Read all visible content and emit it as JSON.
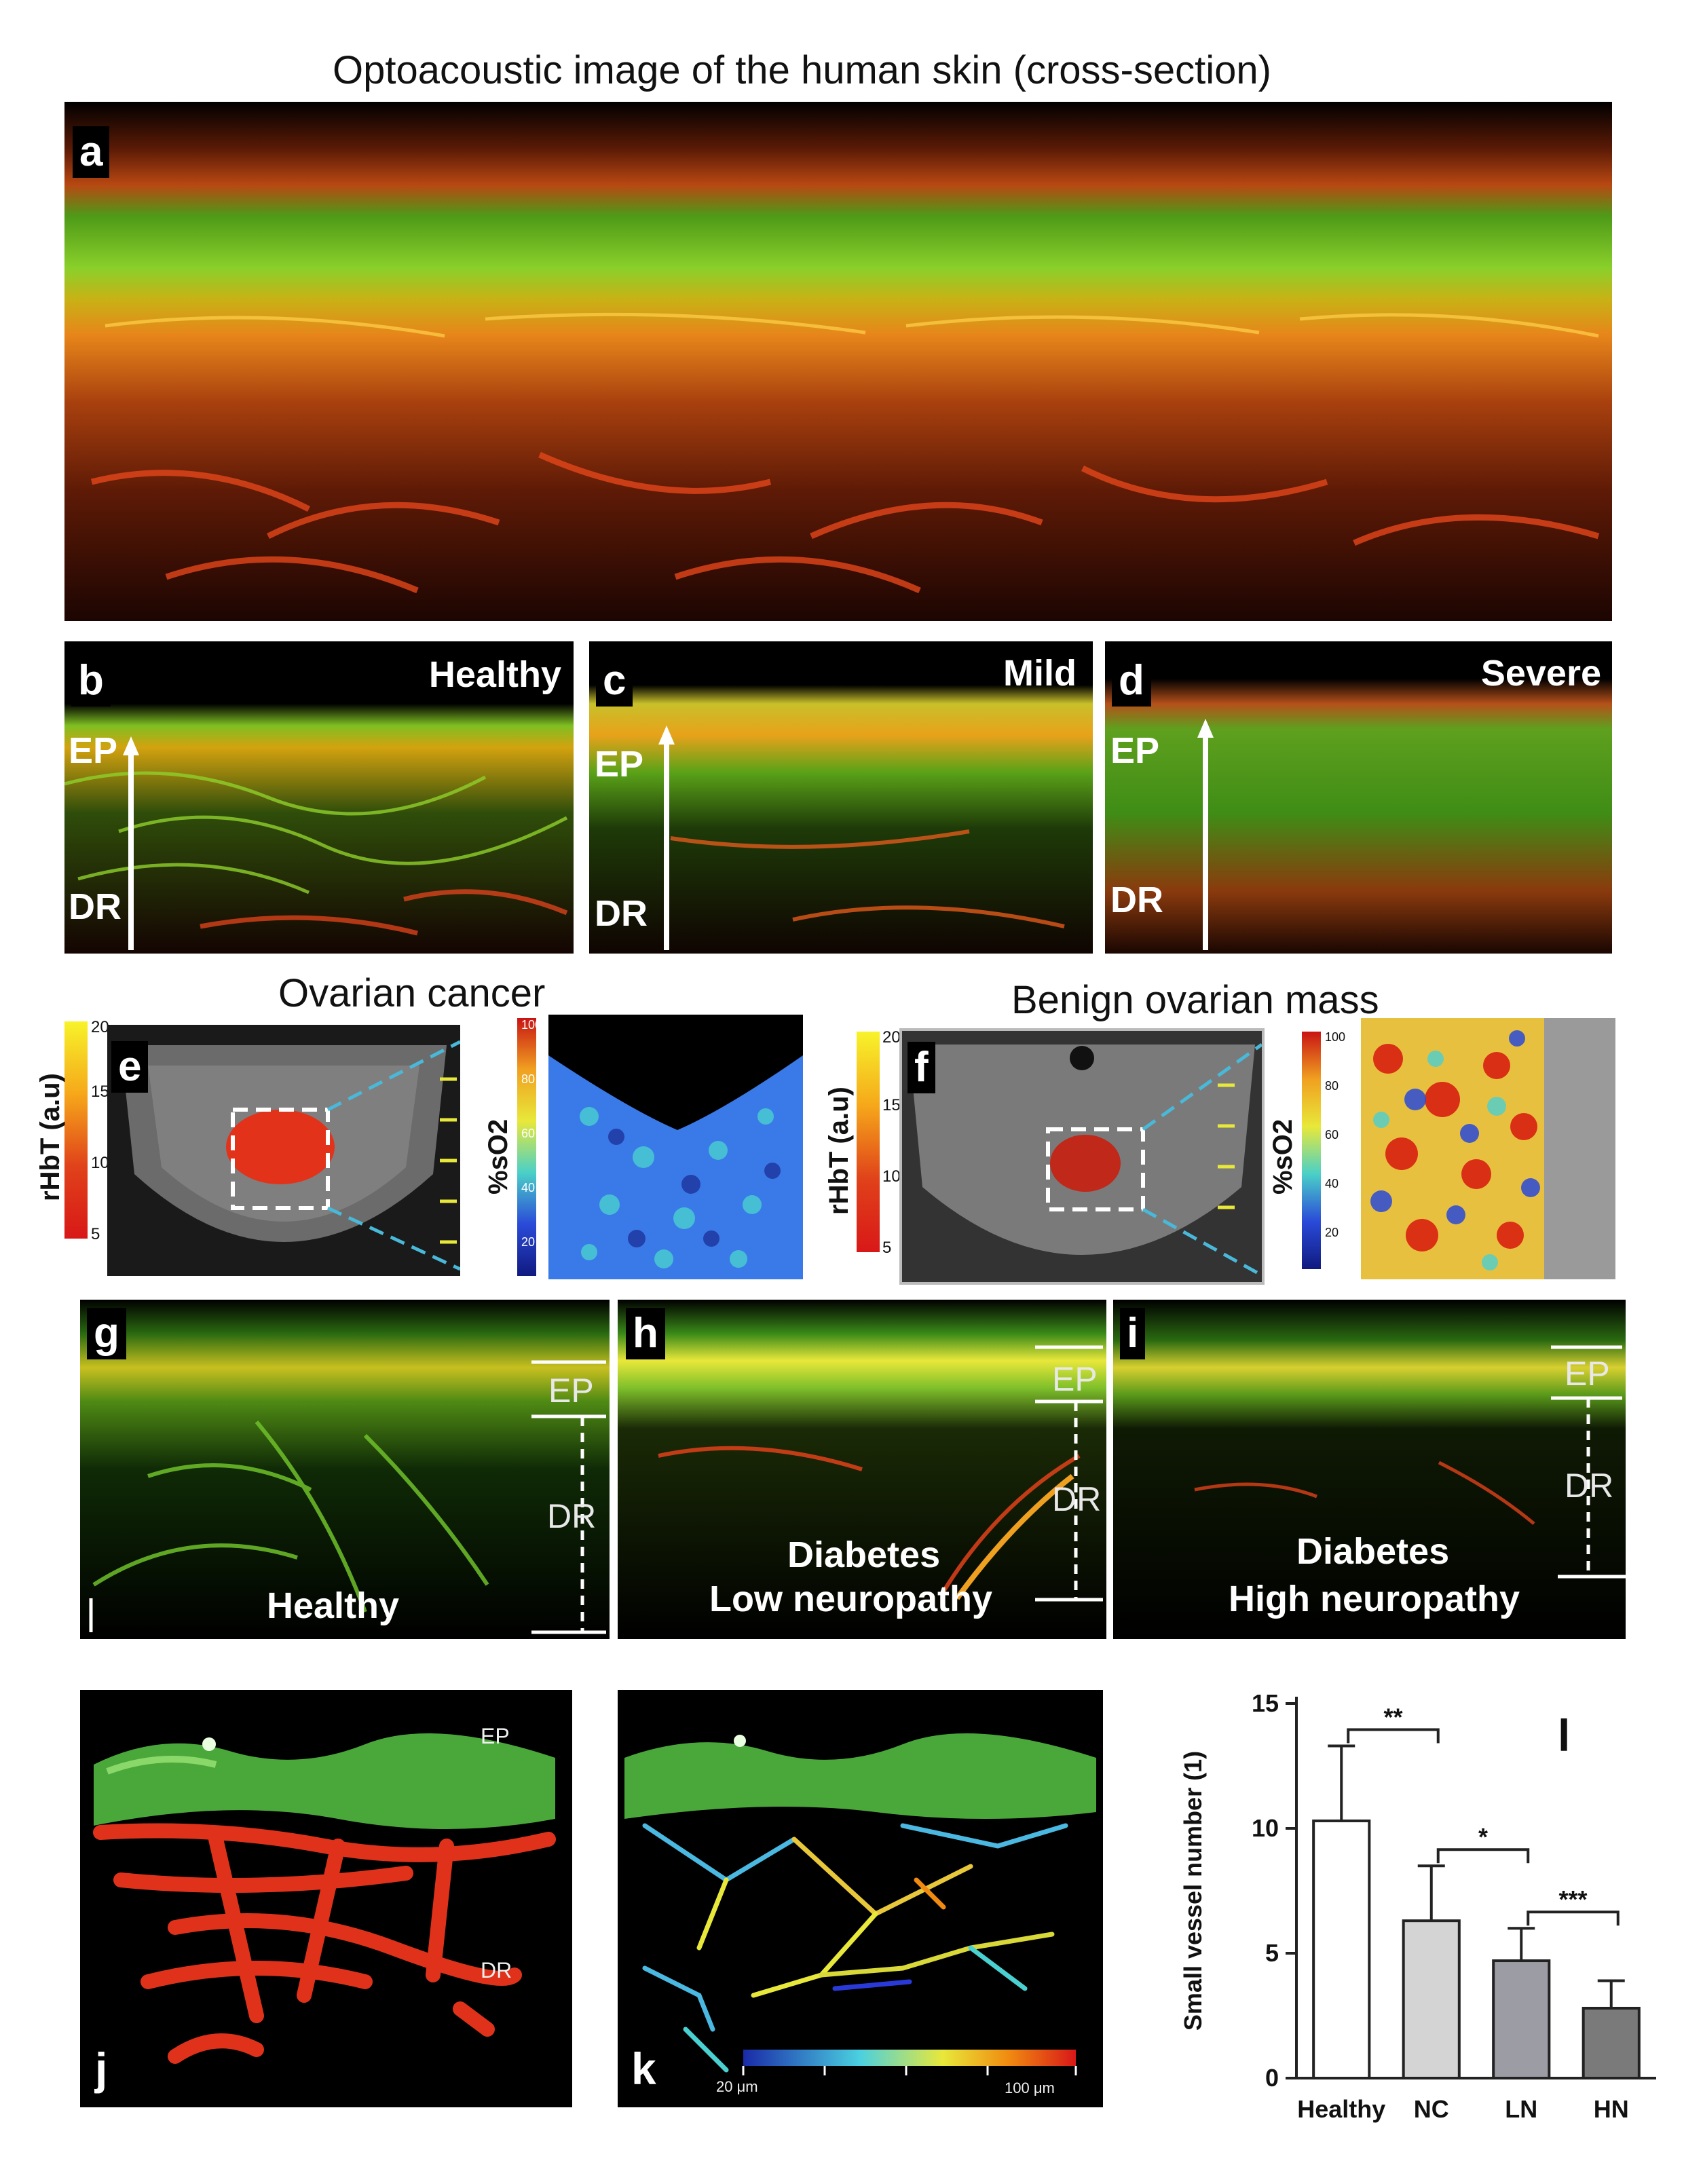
{
  "figure": {
    "title": "Optoacoustic image of the human skin (cross-section)",
    "panel_a": {
      "letter": "a"
    },
    "panel_b": {
      "letter": "b",
      "condition": "Healthy",
      "ep": "EP",
      "dr": "DR"
    },
    "panel_c": {
      "letter": "c",
      "condition": "Mild",
      "ep": "EP",
      "dr": "DR"
    },
    "panel_d": {
      "letter": "d",
      "condition": "Severe",
      "ep": "EP",
      "dr": "DR"
    },
    "panel_e": {
      "letter": "e",
      "caption": "Ovarian cancer",
      "rhbt_label": "rHbT (a.u)",
      "so2_label": "%sO2",
      "rhbt_ticks": [
        "20",
        "15",
        "10",
        "5"
      ],
      "so2_ticks": [
        "100",
        "80",
        "60",
        "40",
        "20"
      ]
    },
    "panel_f": {
      "letter": "f",
      "caption": "Benign ovarian mass",
      "rhbt_label": "rHbT (a.u)",
      "so2_label": "%sO2",
      "rhbt_ticks": [
        "20",
        "15",
        "10",
        "5"
      ],
      "so2_ticks": [
        "100",
        "80",
        "60",
        "40",
        "20"
      ]
    },
    "panel_g": {
      "letter": "g",
      "line1": "Healthy",
      "ep": "EP",
      "dr": "DR"
    },
    "panel_h": {
      "letter": "h",
      "line1": "Diabetes",
      "line2": "Low neuropathy",
      "ep": "EP",
      "dr": "DR"
    },
    "panel_i": {
      "letter": "i",
      "line1": "Diabetes",
      "line2": "High neuropathy",
      "ep": "EP",
      "dr": "DR"
    },
    "panel_j": {
      "letter": "j",
      "ep": "EP",
      "dr": "DR"
    },
    "panel_k": {
      "letter": "k",
      "scale_min": "20 μm",
      "scale_max": "100 μm"
    },
    "panel_l": {
      "letter": "l"
    }
  },
  "colors": {
    "epidermis_green": "#6fcf2a",
    "vessel_red": "#e0321a",
    "vessel_orange": "#f08a10",
    "bar_healthy": "#ffffff",
    "bar_nc": "#d4d4d4",
    "bar_ln": "#9c9ca4",
    "bar_hn": "#7a7a7a"
  },
  "chart_data": {
    "type": "bar",
    "title": "",
    "xlabel": "",
    "ylabel": "Small vessel number (1)",
    "categories": [
      "Healthy",
      "NC",
      "LN",
      "HN"
    ],
    "values": [
      10.3,
      6.3,
      4.7,
      2.8
    ],
    "errors": [
      3.0,
      2.2,
      1.3,
      1.1
    ],
    "ylim": [
      0,
      15
    ],
    "yticks": [
      0,
      5,
      10,
      15
    ],
    "significance": [
      {
        "from": "Healthy",
        "to": "NC",
        "label": "**"
      },
      {
        "from": "NC",
        "to": "LN",
        "label": "*"
      },
      {
        "from": "LN",
        "to": "HN",
        "label": "***"
      }
    ],
    "grid": false
  }
}
